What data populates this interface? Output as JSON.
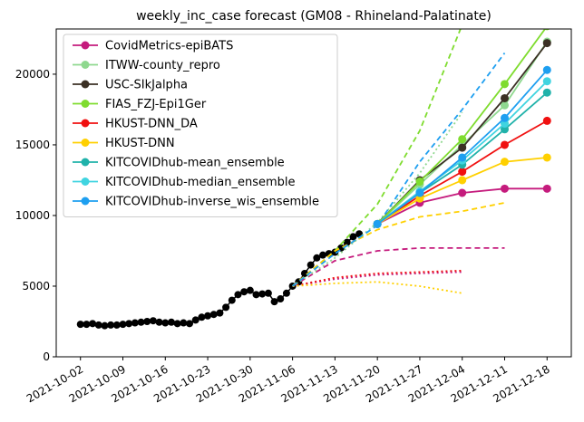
{
  "chart_data": {
    "type": "line",
    "title": "weekly_inc_case forecast (GM08 - Rhineland-Palatinate)",
    "xlim": [
      "2021-09-28",
      "2021-12-22"
    ],
    "ylim": [
      0,
      23200
    ],
    "xticks": [
      "2021-10-02",
      "2021-10-09",
      "2021-10-16",
      "2021-10-23",
      "2021-10-30",
      "2021-11-06",
      "2021-11-13",
      "2021-11-20",
      "2021-11-27",
      "2021-12-04",
      "2021-12-11",
      "2021-12-18"
    ],
    "yticks": [
      0,
      5000,
      10000,
      15000,
      20000
    ],
    "legend": "upper left",
    "observed": {
      "color": "#000000",
      "x": [
        "2021-10-02",
        "2021-10-03",
        "2021-10-04",
        "2021-10-05",
        "2021-10-06",
        "2021-10-07",
        "2021-10-08",
        "2021-10-09",
        "2021-10-10",
        "2021-10-11",
        "2021-10-12",
        "2021-10-13",
        "2021-10-14",
        "2021-10-15",
        "2021-10-16",
        "2021-10-17",
        "2021-10-18",
        "2021-10-19",
        "2021-10-20",
        "2021-10-21",
        "2021-10-22",
        "2021-10-23",
        "2021-10-24",
        "2021-10-25",
        "2021-10-26",
        "2021-10-27",
        "2021-10-28",
        "2021-10-29",
        "2021-10-30",
        "2021-10-31",
        "2021-11-01",
        "2021-11-02",
        "2021-11-03",
        "2021-11-04",
        "2021-11-05",
        "2021-11-06",
        "2021-11-07",
        "2021-11-08",
        "2021-11-09",
        "2021-11-10",
        "2021-11-11",
        "2021-11-12",
        "2021-11-13",
        "2021-11-14",
        "2021-11-15",
        "2021-11-16",
        "2021-11-17"
      ],
      "values": [
        2300,
        2300,
        2350,
        2250,
        2200,
        2250,
        2250,
        2300,
        2350,
        2400,
        2450,
        2500,
        2550,
        2450,
        2400,
        2450,
        2350,
        2400,
        2350,
        2600,
        2800,
        2900,
        3000,
        3100,
        3500,
        4000,
        4400,
        4600,
        4700,
        4400,
        4450,
        4500,
        3900,
        4100,
        4500,
        5000,
        5300,
        5900,
        6500,
        7000,
        7200,
        7300,
        7400,
        7700,
        8100,
        8500,
        8700
      ]
    },
    "x": [
      "2021-11-20",
      "2021-11-27",
      "2021-12-04",
      "2021-12-11",
      "2021-12-18"
    ],
    "series": [
      {
        "name": "CovidMetrics-epiBATS",
        "color": "#c51b7d",
        "values": [
          9400,
          10900,
          11600,
          11900,
          11900
        ],
        "upper": {
          "x": [
            "2021-11-06",
            "2021-11-13",
            "2021-11-20",
            "2021-11-27",
            "2021-12-04",
            "2021-12-11"
          ],
          "values": [
            5000,
            6800,
            7500,
            7700,
            7700,
            7700
          ]
        },
        "lower": {
          "x": [
            "2021-11-06",
            "2021-11-13",
            "2021-11-20",
            "2021-11-27",
            "2021-12-04"
          ],
          "values": [
            5000,
            5500,
            5800,
            5900,
            6000
          ]
        }
      },
      {
        "name": "ITWW-county_repro",
        "color": "#8fd88f",
        "values": [
          9400,
          12200,
          15000,
          17800,
          22300
        ],
        "lower": {
          "x": [
            "2021-11-06",
            "2021-11-13",
            "2021-11-20",
            "2021-11-27",
            "2021-12-04"
          ],
          "values": [
            5000,
            7000,
            9500,
            13000,
            17300
          ]
        }
      },
      {
        "name": "USC-SIkJalpha",
        "color": "#3b3024",
        "values": [
          9400,
          12500,
          14800,
          18300,
          22200
        ]
      },
      {
        "name": "FIAS_FZJ-Epi1Ger",
        "color": "#7fdc2f",
        "values": [
          9400,
          12400,
          15400,
          19300,
          23400
        ],
        "upper": {
          "x": [
            "2021-11-06",
            "2021-11-13",
            "2021-11-20",
            "2021-11-27",
            "2021-12-04"
          ],
          "values": [
            5000,
            7500,
            10800,
            16000,
            23500
          ]
        }
      },
      {
        "name": "HKUST-DNN_DA",
        "color": "#f01010",
        "values": [
          9400,
          11400,
          13100,
          15000,
          16700
        ],
        "lower": {
          "x": [
            "2021-11-06",
            "2021-11-13",
            "2021-11-20",
            "2021-11-27",
            "2021-12-04"
          ],
          "values": [
            5000,
            5600,
            5900,
            6000,
            6100
          ]
        }
      },
      {
        "name": "HKUST-DNN",
        "color": "#ffd000",
        "values": [
          9400,
          11200,
          12500,
          13800,
          14100
        ],
        "upper": {
          "x": [
            "2021-11-06",
            "2021-11-13",
            "2021-11-20",
            "2021-11-27",
            "2021-12-04",
            "2021-12-11"
          ],
          "values": [
            5000,
            7500,
            9000,
            9900,
            10300,
            10900
          ]
        },
        "lower": {
          "x": [
            "2021-11-06",
            "2021-11-13",
            "2021-11-20",
            "2021-11-27",
            "2021-12-04"
          ],
          "values": [
            5000,
            5200,
            5300,
            5000,
            4500
          ]
        }
      },
      {
        "name": "KITCOVIDhub-mean_ensemble",
        "color": "#20b2aa",
        "values": [
          9400,
          11600,
          13600,
          16100,
          18700
        ]
      },
      {
        "name": "KITCOVIDhub-median_ensemble",
        "color": "#40d4e0",
        "values": [
          9400,
          11700,
          13900,
          16500,
          19500
        ]
      },
      {
        "name": "KITCOVIDhub-inverse_wis_ensemble",
        "color": "#1e9ff0",
        "values": [
          9400,
          11600,
          14100,
          16900,
          20300
        ],
        "upper": {
          "x": [
            "2021-11-06",
            "2021-11-13",
            "2021-11-20",
            "2021-11-27",
            "2021-12-04",
            "2021-12-11"
          ],
          "values": [
            5000,
            7300,
            9300,
            13800,
            17500,
            21500
          ]
        }
      }
    ]
  }
}
